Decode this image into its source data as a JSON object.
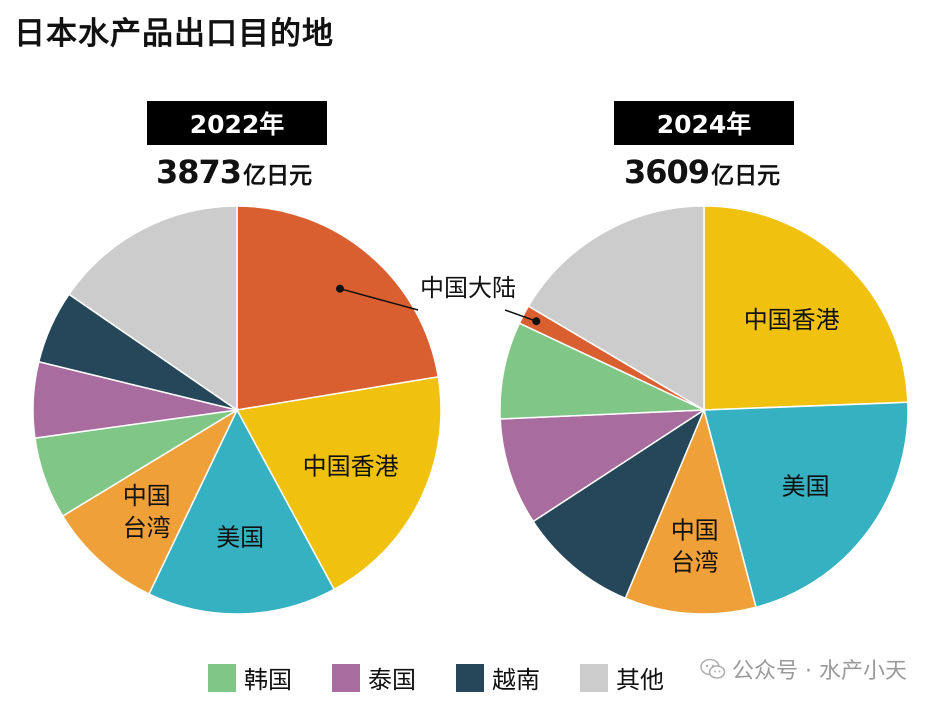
{
  "title": "日本水产品出口目的地",
  "colors": {
    "中国大陆": "#D95F30",
    "中国香港": "#F0C20F",
    "美国": "#35B1C1",
    "中国台湾": "#F0A038",
    "韩国": "#80C686",
    "泰国": "#A86C9E",
    "越南": "#26475A",
    "其他": "#CCCCCC"
  },
  "legend": [
    {
      "key": "韩国",
      "label": "韩国"
    },
    {
      "key": "泰国",
      "label": "泰国"
    },
    {
      "key": "越南",
      "label": "越南"
    },
    {
      "key": "其他",
      "label": "其他"
    }
  ],
  "watermark": "公众号 · 水产小天",
  "chart_data": [
    {
      "type": "pie",
      "title": "2022年",
      "total_number": "3873",
      "total_unit": "亿日元",
      "start": "12 o'clock, clockwise",
      "slices": [
        {
          "name": "中国大陆",
          "value": 22.4,
          "label": "中国大陆",
          "label_mode": "callout"
        },
        {
          "name": "中国香港",
          "value": 19.7,
          "label": "中国香港",
          "label_mode": "inside"
        },
        {
          "name": "美国",
          "value": 15.0,
          "label": "美国",
          "label_mode": "inside"
        },
        {
          "name": "中国台湾",
          "value": 9.2,
          "label": "中国台湾",
          "label_mode": "inside_two_line"
        },
        {
          "name": "韩国",
          "value": 6.5,
          "label": "",
          "label_mode": "none"
        },
        {
          "name": "泰国",
          "value": 6.0,
          "label": "",
          "label_mode": "none"
        },
        {
          "name": "越南",
          "value": 5.8,
          "label": "",
          "label_mode": "none"
        },
        {
          "name": "其他",
          "value": 15.4,
          "label": "",
          "label_mode": "none"
        }
      ]
    },
    {
      "type": "pie",
      "title": "2024年",
      "total_number": "3609",
      "total_unit": "亿日元",
      "start": "12 o'clock, clockwise",
      "slices": [
        {
          "name": "中国香港",
          "value": 24.4,
          "label": "中国香港",
          "label_mode": "inside"
        },
        {
          "name": "美国",
          "value": 21.5,
          "label": "美国",
          "label_mode": "inside"
        },
        {
          "name": "中国台湾",
          "value": 10.4,
          "label": "中国台湾",
          "label_mode": "inside_two_line"
        },
        {
          "name": "越南",
          "value": 9.5,
          "label": "",
          "label_mode": "none"
        },
        {
          "name": "泰国",
          "value": 8.5,
          "label": "",
          "label_mode": "none"
        },
        {
          "name": "韩国",
          "value": 7.7,
          "label": "",
          "label_mode": "none"
        },
        {
          "name": "中国大陆",
          "value": 1.5,
          "label": "中国大陆",
          "label_mode": "callout"
        },
        {
          "name": "其他",
          "value": 16.5,
          "label": "",
          "label_mode": "none"
        }
      ]
    }
  ]
}
